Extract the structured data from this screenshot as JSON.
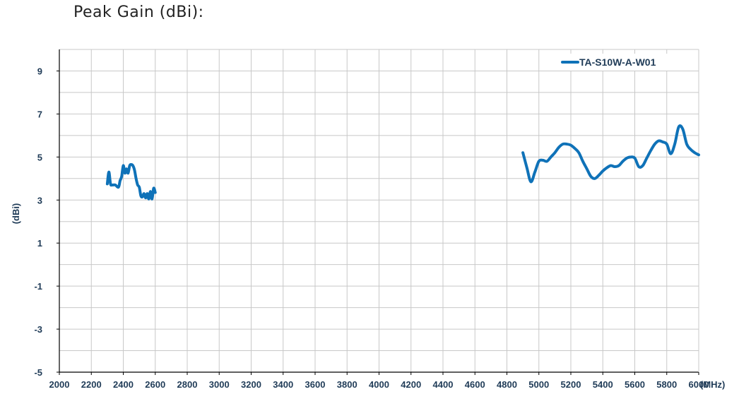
{
  "page": {
    "title": "Peak Gain (dBi):"
  },
  "chart_data": {
    "type": "line",
    "title": "",
    "xlabel": "",
    "x_unit_label": "(MHz)",
    "ylabel": "(dBi)",
    "xlim": [
      2000,
      6000
    ],
    "ylim": [
      -5,
      10
    ],
    "x_ticks": [
      2000,
      2200,
      2400,
      2600,
      2800,
      3000,
      3200,
      3400,
      3600,
      3800,
      4000,
      4200,
      4400,
      4600,
      4800,
      5000,
      5200,
      5400,
      5600,
      5800,
      6000
    ],
    "y_ticks": [
      -5,
      -3,
      -1,
      1,
      3,
      5,
      7,
      9
    ],
    "grid": true,
    "legend_position": "top-right",
    "colors": {
      "series": "#0f72b8",
      "grid": "#c8c8c8",
      "axis": "#000000",
      "label": "#1f3b57"
    },
    "series": [
      {
        "name": "TA-S10W-A-W01",
        "segments": [
          {
            "x": [
              2300,
              2310,
              2320,
              2330,
              2350,
              2370,
              2380,
              2390,
              2400,
              2410,
              2420,
              2430,
              2440,
              2450,
              2460,
              2470,
              2480,
              2490,
              2500,
              2510,
              2520,
              2530,
              2540,
              2550,
              2560,
              2570,
              2580,
              2590,
              2600
            ],
            "y": [
              3.75,
              4.3,
              3.75,
              3.7,
              3.7,
              3.6,
              3.9,
              4.1,
              4.6,
              4.25,
              4.45,
              4.25,
              4.6,
              4.65,
              4.6,
              4.4,
              4.0,
              3.7,
              3.6,
              3.2,
              3.15,
              3.3,
              3.1,
              3.3,
              3.05,
              3.4,
              3.05,
              3.55,
              3.35
            ]
          },
          {
            "x": [
              4900,
              4925,
              4950,
              4975,
              5000,
              5025,
              5050,
              5075,
              5100,
              5125,
              5150,
              5175,
              5200,
              5225,
              5250,
              5275,
              5300,
              5325,
              5350,
              5375,
              5400,
              5425,
              5450,
              5475,
              5500,
              5525,
              5550,
              5575,
              5600,
              5625,
              5650,
              5675,
              5700,
              5725,
              5750,
              5775,
              5800,
              5825,
              5850,
              5875,
              5900,
              5925,
              5950,
              5975,
              6000
            ],
            "y": [
              5.2,
              4.5,
              3.85,
              4.3,
              4.8,
              4.85,
              4.8,
              5.0,
              5.2,
              5.45,
              5.6,
              5.6,
              5.55,
              5.4,
              5.2,
              4.8,
              4.45,
              4.1,
              4.0,
              4.15,
              4.35,
              4.5,
              4.6,
              4.55,
              4.6,
              4.8,
              4.95,
              5.0,
              4.95,
              4.55,
              4.6,
              4.95,
              5.3,
              5.6,
              5.75,
              5.7,
              5.6,
              5.15,
              5.6,
              6.4,
              6.3,
              5.6,
              5.35,
              5.2,
              5.1
            ]
          }
        ]
      }
    ]
  }
}
